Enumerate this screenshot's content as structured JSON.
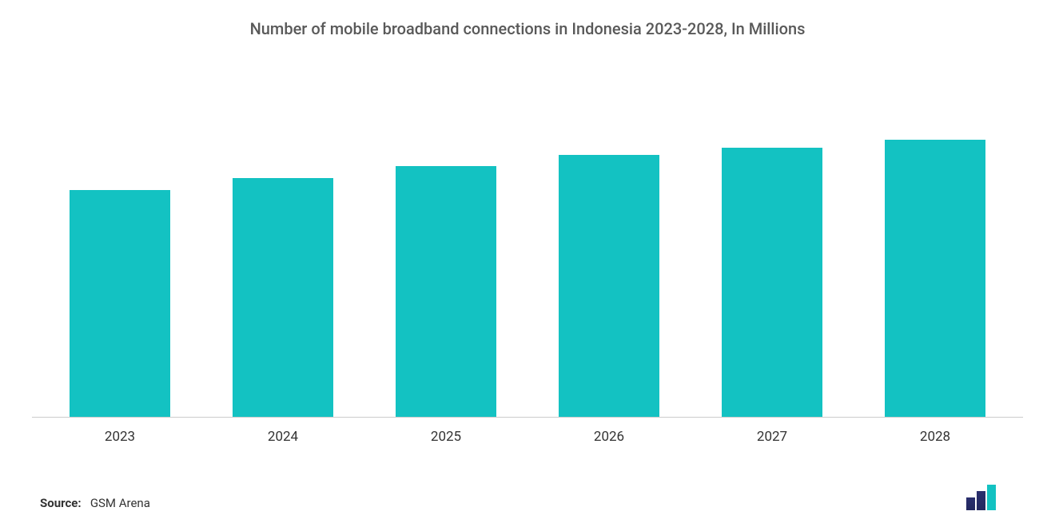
{
  "chart": {
    "type": "bar",
    "title": "Number of mobile broadband connections in Indonesia 2023-2028, In Millions",
    "title_fontsize": 20,
    "title_color": "#595959",
    "categories": [
      "2023",
      "2024",
      "2025",
      "2026",
      "2027",
      "2028"
    ],
    "values": [
      295,
      310,
      326,
      340,
      350,
      360
    ],
    "ylim": [
      0,
      440
    ],
    "bar_color": "#13c2c2",
    "bar_width": 0.62,
    "background_color": "#ffffff",
    "axis_line_color": "#cccccc",
    "xlabel_fontsize": 17,
    "xlabel_color": "#333333"
  },
  "source": {
    "label": "Source:",
    "value": "GSM Arena",
    "fontsize": 15,
    "color": "#333333"
  },
  "logo": {
    "bar_colors": [
      "#2a2f6e",
      "#2a2f6e",
      "#13c2c2"
    ],
    "curve_color": "#2a2f6e"
  }
}
